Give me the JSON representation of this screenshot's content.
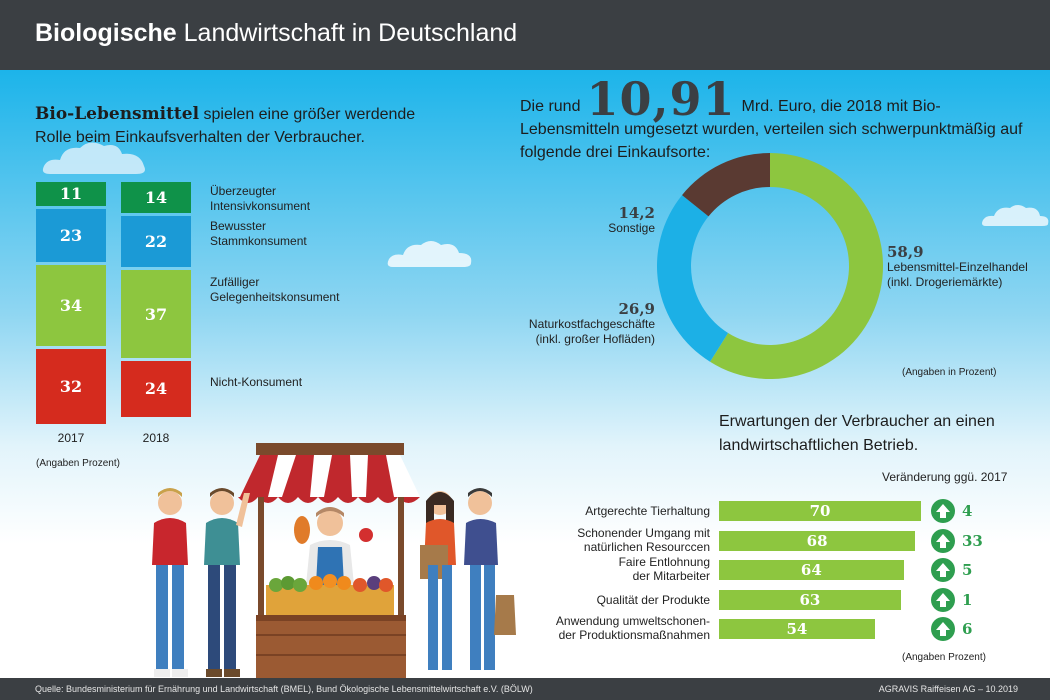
{
  "header": {
    "title_bold": "Biologische",
    "title_rest": " Landwirtschaft in Deutschland"
  },
  "left": {
    "intro_bold": "Bio-Lebensmittel",
    "intro_rest": " spielen eine größer werdende Rolle beim Einkaufsverhalten der Verbraucher.",
    "note": "(Angaben Prozent)"
  },
  "right_top": {
    "intro_prefix": "Die rund",
    "big_number": "10,91",
    "intro_suffix": "Mrd. Euro, die 2018 mit Bio-Lebensmitteln umgesetzt wurden, verteilen sich schwerpunktmäßig auf folgende drei Einkaufsorte:",
    "note": "(Angaben in Prozent)"
  },
  "right_bottom": {
    "title": "Erwartungen der Verbraucher an einen landwirtschaftlichen Betrieb.",
    "change_head": "Veränderung ggü. 2017",
    "note": "(Angaben Prozent)"
  },
  "footer": {
    "source": "Quelle: Bundesministerium für Ernährung und Landwirtschaft (BMEL), Bund Ökologische Lebensmittelwirtschaft e.V. (BÖLW)",
    "credit": "AGRAVIS Raiffeisen AG – 10.2019"
  },
  "chart_data": [
    {
      "type": "bar",
      "stacked": true,
      "categories": [
        "2017",
        "2018"
      ],
      "series": [
        {
          "name": "Überzeugter Intensivkonsument",
          "values": [
            11,
            14
          ],
          "color": "#0f9249"
        },
        {
          "name": "Bewusster Stammkonsument",
          "values": [
            23,
            22
          ],
          "color": "#1b9ad6"
        },
        {
          "name": "Zufälliger Gelegenheitskonsument",
          "values": [
            34,
            37
          ],
          "color": "#8dc63f"
        },
        {
          "name": "Nicht-Konsument",
          "values": [
            32,
            24
          ],
          "color": "#d52b1e"
        }
      ],
      "series_labels": [
        [
          "Überzeugter",
          "Intensivkonsument"
        ],
        [
          "Bewusster",
          "Stammkonsument"
        ],
        [
          "Zufälliger",
          "Gelegenheitskonsument"
        ],
        [
          "Nicht-Konsument"
        ]
      ]
    },
    {
      "type": "pie",
      "donut": true,
      "slices": [
        {
          "label": [
            "Lebensmittel-Einzelhandel",
            "(inkl. Drogeriemärkte)"
          ],
          "value": 58.9,
          "value_text": "58,9",
          "color": "#8dc63f"
        },
        {
          "label": [
            "Naturkostfachgeschäfte",
            "(inkl. großer Hofläden)"
          ],
          "value": 26.9,
          "value_text": "26,9",
          "color": "#1cb0e6"
        },
        {
          "label": [
            "Sonstige"
          ],
          "value": 14.2,
          "value_text": "14,2",
          "color": "#5a3a32"
        }
      ]
    },
    {
      "type": "bar",
      "orientation": "horizontal",
      "categories": [
        [
          "Artgerechte Tierhaltung"
        ],
        [
          "Schonender Umgang mit",
          "natürlichen Resourccen"
        ],
        [
          "Faire Entlohnung",
          "der Mitarbeiter"
        ],
        [
          "Qualität der Produkte"
        ],
        [
          "Anwendung umweltschonen-",
          "der Produktionsmaßnahmen"
        ]
      ],
      "values": [
        70,
        68,
        64,
        63,
        54
      ],
      "change": [
        4,
        33,
        5,
        1,
        6
      ],
      "color": "#8dc63f",
      "change_color": "#2e9e4f"
    }
  ],
  "icons": [
    "cloud-icon",
    "market-stall-illustration",
    "people-illustration",
    "arrow-up-icon"
  ]
}
